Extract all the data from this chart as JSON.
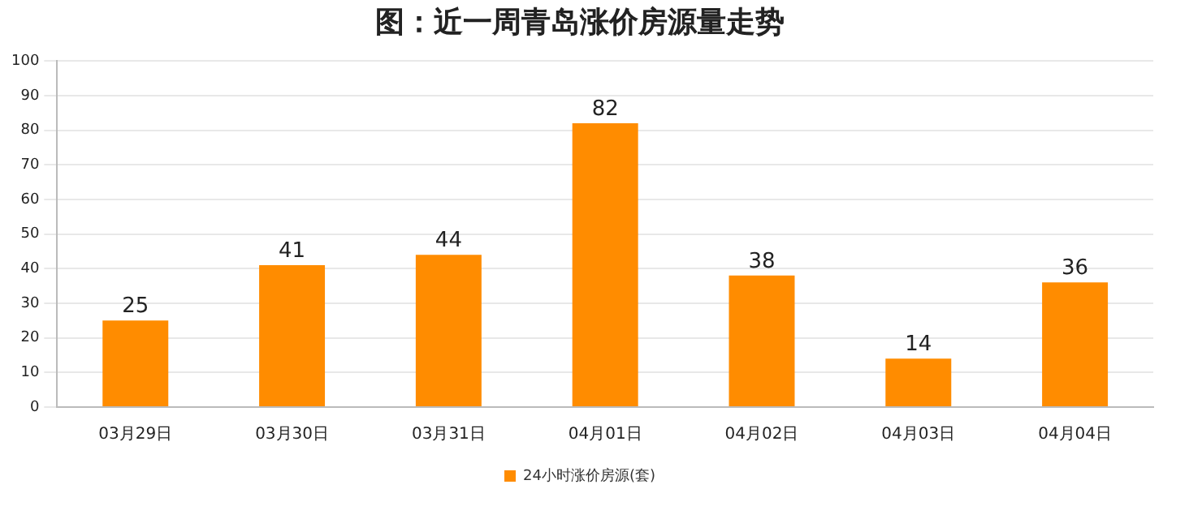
{
  "chart_data": {
    "type": "bar",
    "title": "图：近一周青岛涨价房源量走势",
    "categories": [
      "03月29日",
      "03月30日",
      "03月31日",
      "04月01日",
      "04月02日",
      "04月03日",
      "04月04日"
    ],
    "series": [
      {
        "name": "24小时涨价房源(套)",
        "color": "#ff8c00",
        "values": [
          25,
          41,
          44,
          82,
          38,
          14,
          36
        ]
      }
    ],
    "ylim": [
      0,
      100
    ],
    "yticks": [
      0,
      10,
      20,
      30,
      40,
      50,
      60,
      70,
      80,
      90,
      100
    ],
    "grid": "y",
    "legend": "bottom",
    "data_labels": true
  }
}
